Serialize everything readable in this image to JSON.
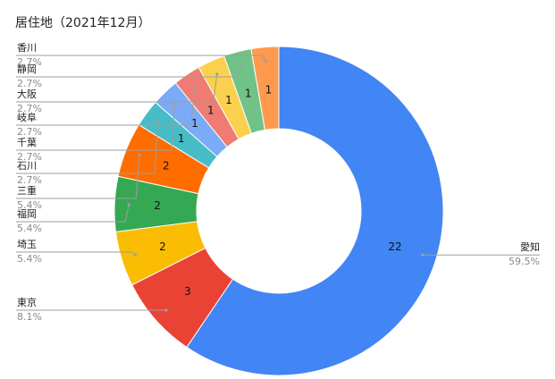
{
  "chart_data": {
    "type": "pie",
    "title": "居住地（2021年12月）",
    "donut": true,
    "slices": [
      {
        "label": "愛知",
        "value": 22,
        "percent": "59.5%",
        "color": "#4285f4"
      },
      {
        "label": "東京",
        "value": 3,
        "percent": "8.1%",
        "color": "#ea4335"
      },
      {
        "label": "埼玉",
        "value": 2,
        "percent": "5.4%",
        "color": "#fbbc04"
      },
      {
        "label": "福岡",
        "value": 2,
        "percent": "5.4%",
        "color": "#34a853"
      },
      {
        "label": "三重",
        "value": 2,
        "percent": "5.4%",
        "color": "#ff6d01"
      },
      {
        "label": "石川",
        "value": 1,
        "percent": "2.7%",
        "color": "#46bdc6"
      },
      {
        "label": "千葉",
        "value": 1,
        "percent": "2.7%",
        "color": "#7baaf7"
      },
      {
        "label": "岐阜",
        "value": 1,
        "percent": "2.7%",
        "color": "#f07b72"
      },
      {
        "label": "大阪",
        "value": 1,
        "percent": "2.7%",
        "color": "#fcd04f"
      },
      {
        "label": "静岡",
        "value": 1,
        "percent": "2.7%",
        "color": "#71c287"
      },
      {
        "label": "香川",
        "value": 1,
        "percent": "2.7%",
        "color": "#ff994d"
      }
    ]
  }
}
